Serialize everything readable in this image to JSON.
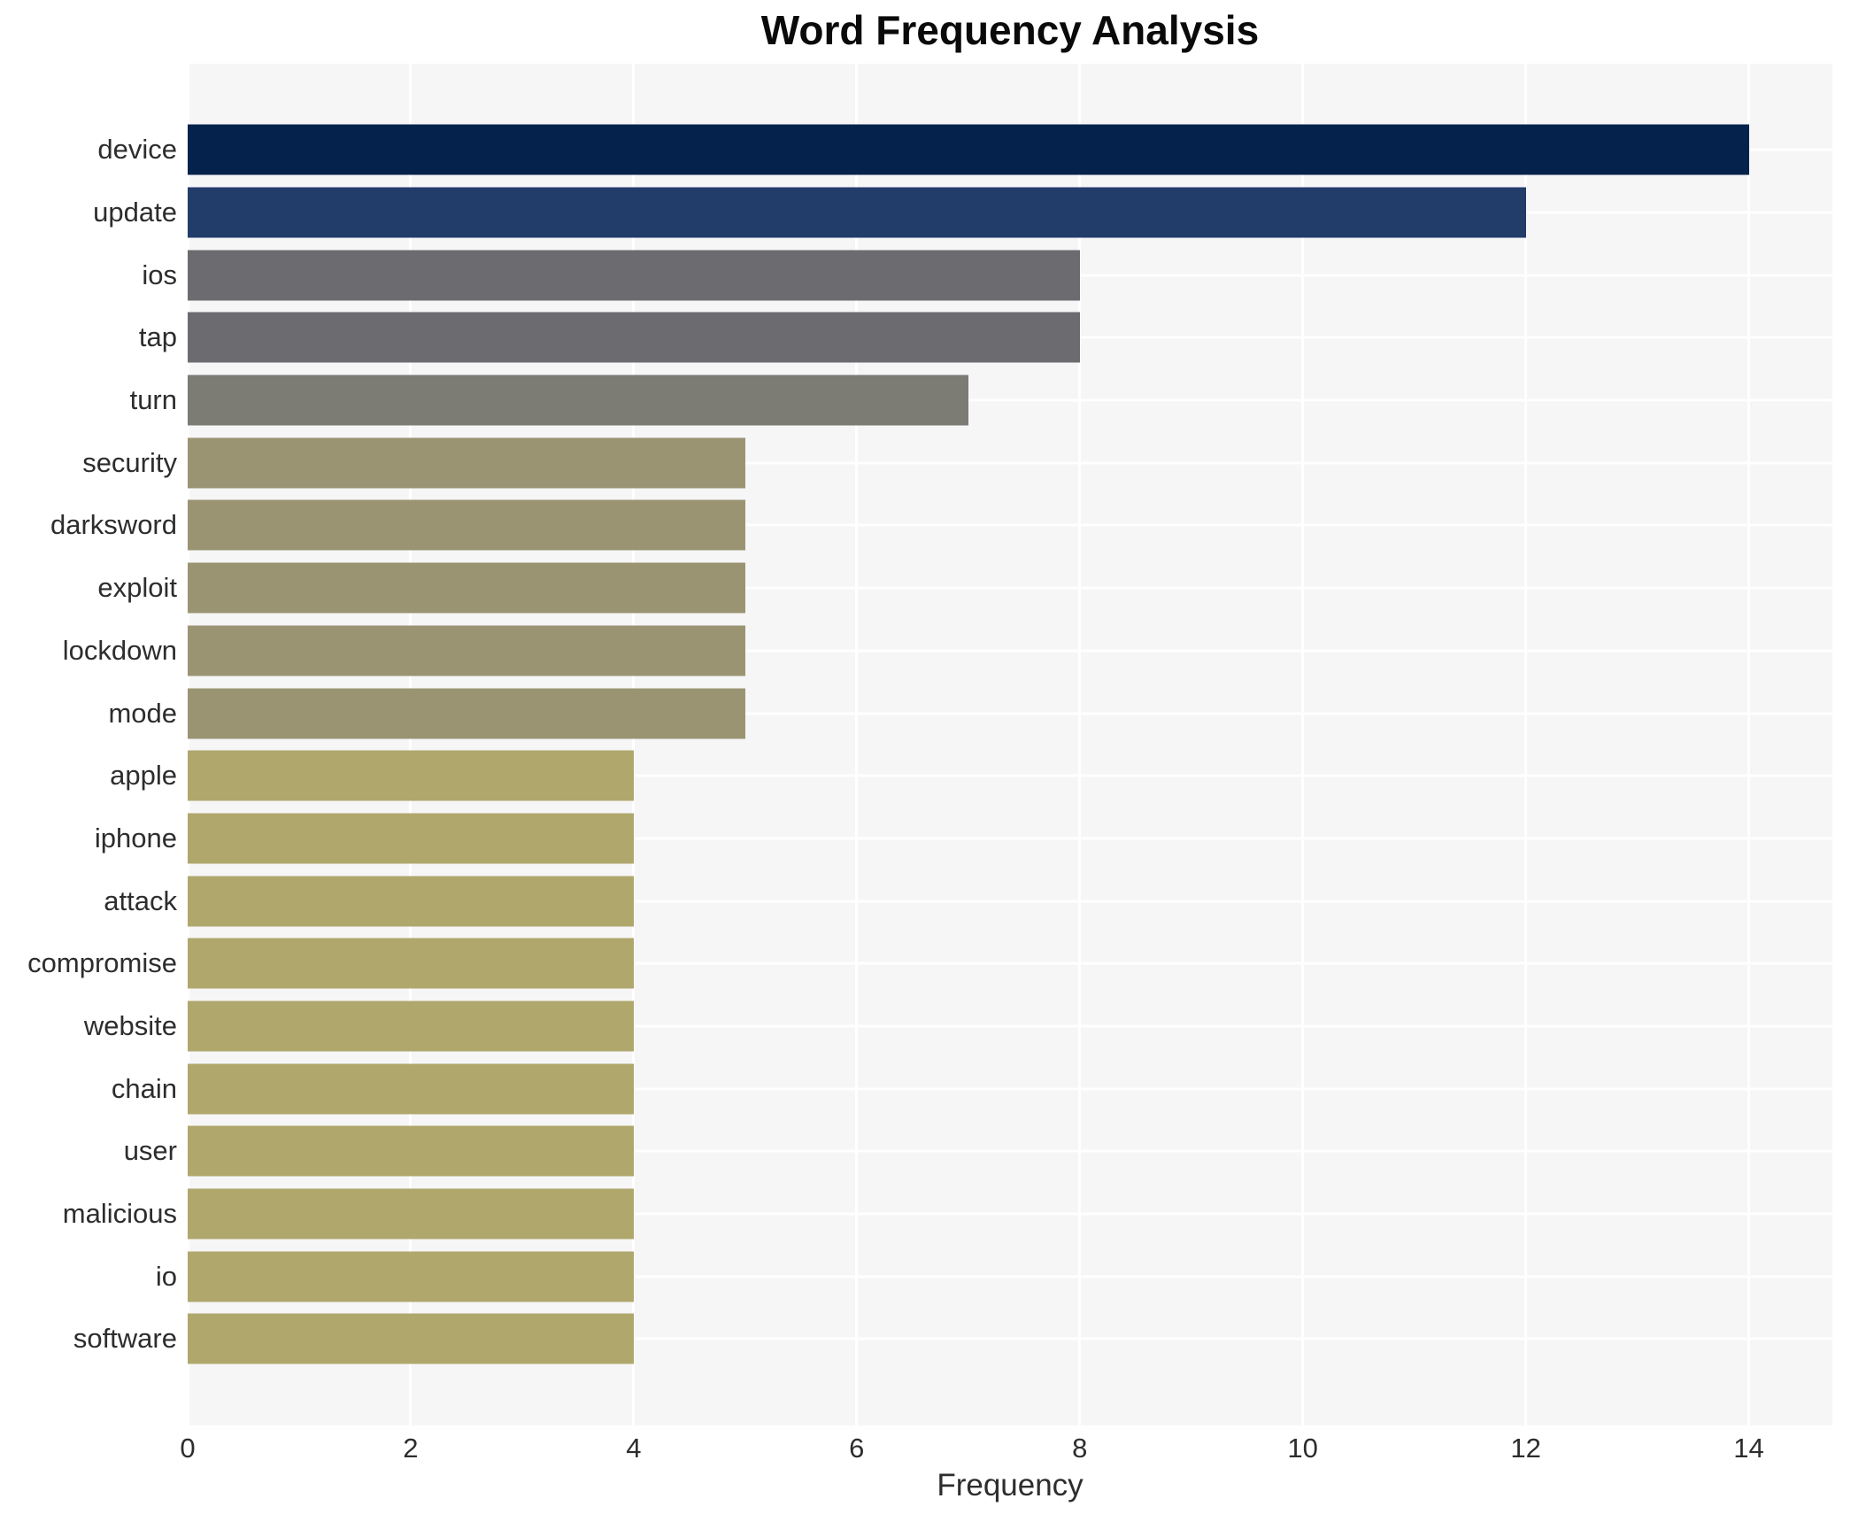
{
  "title": "Word Frequency Analysis",
  "chart_data": {
    "type": "bar",
    "orientation": "horizontal",
    "title": "Word Frequency Analysis",
    "xlabel": "Frequency",
    "ylabel": "",
    "categories": [
      "device",
      "update",
      "ios",
      "tap",
      "turn",
      "security",
      "darksword",
      "exploit",
      "lockdown",
      "mode",
      "apple",
      "iphone",
      "attack",
      "compromise",
      "website",
      "chain",
      "user",
      "malicious",
      "io",
      "software"
    ],
    "values": [
      14,
      12,
      8,
      8,
      7,
      5,
      5,
      5,
      5,
      5,
      4,
      4,
      4,
      4,
      4,
      4,
      4,
      4,
      4,
      4
    ],
    "bar_colors": [
      "#05224c",
      "#233d6b",
      "#6c6c70",
      "#6c6c70",
      "#7c7b74",
      "#9b9473",
      "#9b9473",
      "#9b9473",
      "#9b9473",
      "#9b9473",
      "#b0a76c",
      "#b0a76c",
      "#b0a76c",
      "#b0a76c",
      "#b0a76c",
      "#b0a76c",
      "#b0a76c",
      "#b0a76c",
      "#b0a76c",
      "#b0a76c"
    ],
    "x_ticks": [
      0,
      2,
      4,
      6,
      8,
      10,
      12,
      14
    ],
    "xlim": [
      0,
      14.75
    ],
    "grid": true,
    "grid_color": "#ffffff",
    "plot_background": "#f6f6f7",
    "figure_background": "#ffffff",
    "legend": false
  }
}
